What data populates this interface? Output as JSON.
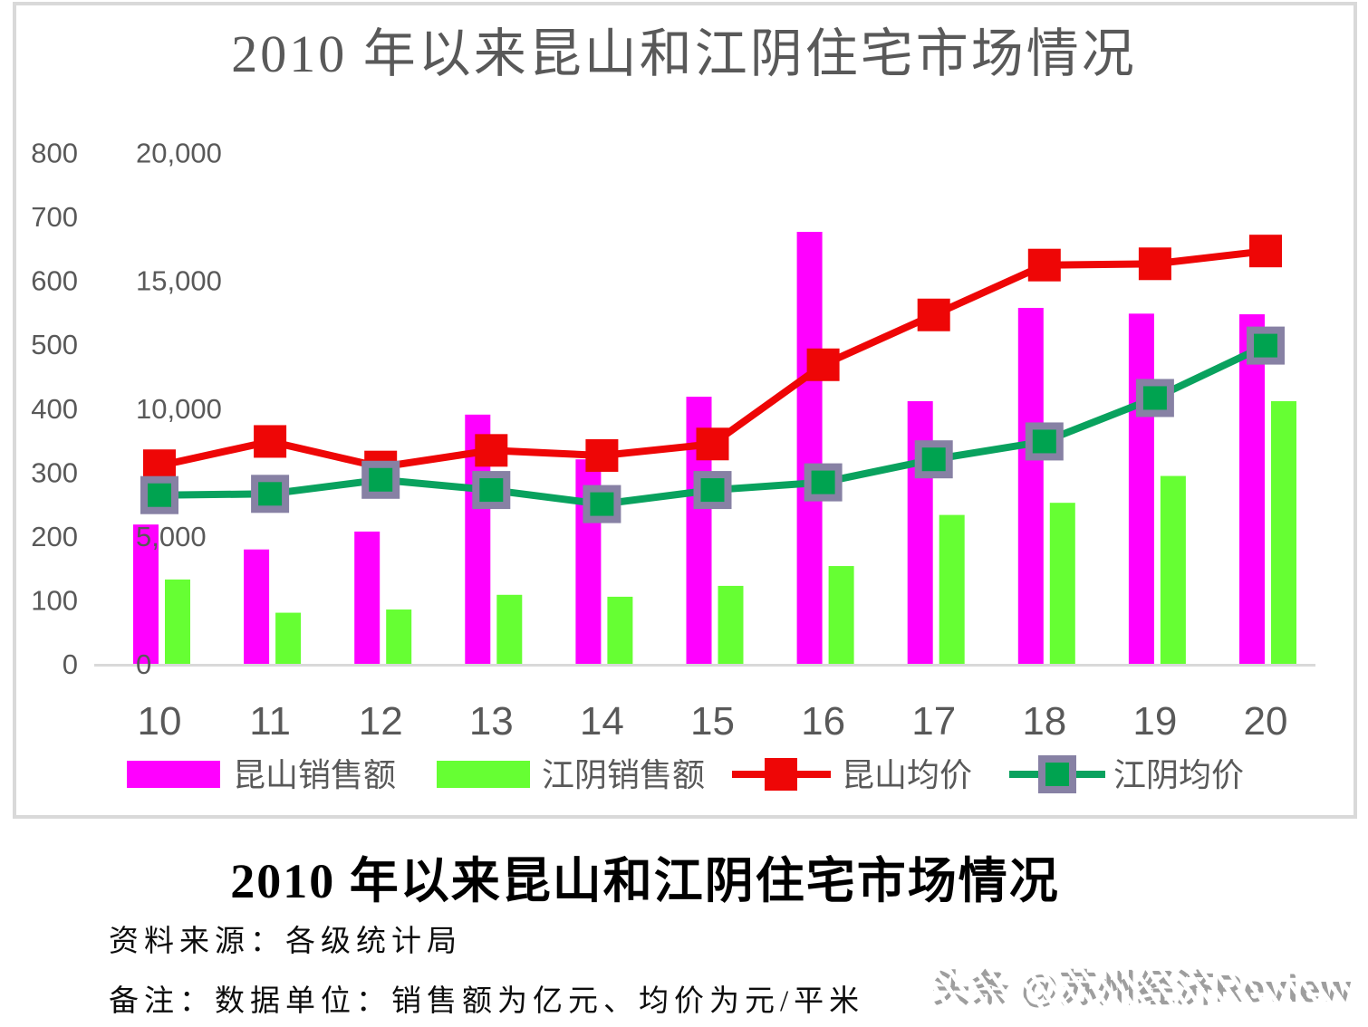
{
  "chart": {
    "title": "2010 年以来昆山和江阴住宅市场情况",
    "frame_color": "#d9d9d9",
    "baseline_color": "#d9d9d9",
    "axis_text_color": "#595959",
    "legend_text_color": "#595959",
    "chart_data": {
      "type": "bar",
      "subtype": "combo dual-axis: clustered bars (left axis, 亿元) + lines with square markers (right axis, 元/平米)",
      "categories": [
        "10",
        "11",
        "12",
        "13",
        "14",
        "15",
        "16",
        "17",
        "18",
        "19",
        "20"
      ],
      "series": [
        {
          "name": "昆山销售额",
          "type": "bar",
          "axis": "left",
          "color": "#FF00FF",
          "values": [
            218,
            179,
            207,
            390,
            320,
            418,
            676,
            411,
            557,
            548,
            547
          ]
        },
        {
          "name": "江阴销售额",
          "type": "bar",
          "axis": "left",
          "color": "#66FF33",
          "values": [
            132,
            80,
            85,
            108,
            105,
            122,
            153,
            233,
            252,
            294,
            411
          ]
        },
        {
          "name": "昆山均价",
          "type": "line",
          "axis": "right",
          "color": "#EE0606",
          "marker": "square",
          "marker_fill": "#EE0606",
          "values": [
            7750,
            8700,
            7700,
            8350,
            8150,
            8600,
            11700,
            13650,
            15600,
            15650,
            16150
          ]
        },
        {
          "name": "江阴均价",
          "type": "line",
          "axis": "right",
          "color": "#09A25E",
          "marker": "square",
          "marker_fill": "#00A350",
          "marker_border": "#8781A4",
          "values": [
            6600,
            6650,
            7200,
            6800,
            6250,
            6800,
            7100,
            8000,
            8700,
            10400,
            12450
          ]
        }
      ],
      "left_axis": {
        "min": 0,
        "max": 800,
        "step": 100,
        "tick_labels": [
          "0",
          "100",
          "200",
          "300",
          "400",
          "500",
          "600",
          "700",
          "800"
        ]
      },
      "right_axis": {
        "min": 0,
        "max": 20000,
        "step": 5000,
        "tick_labels": [
          "0",
          "5,000",
          "10,000",
          "15,000",
          "20,000"
        ]
      },
      "grid": false,
      "legend_position": "bottom"
    }
  },
  "footer": {
    "heading": "2010 年以来昆山和江阴住宅市场情况",
    "source_line": "资料来源：各级统计局",
    "note_line": "备注：数据单位：销售额为亿元、均价为元/平米",
    "watermark": "头条 @苏州经济Review"
  }
}
